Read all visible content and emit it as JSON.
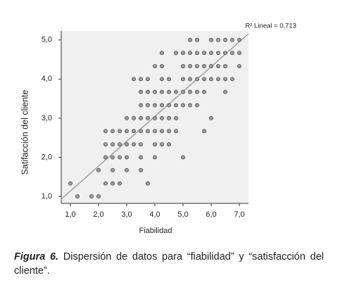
{
  "chart_data": {
    "type": "scatter",
    "x_label": "Fiabilidad",
    "y_label": "Satifacción del cliente",
    "annotation": "R² Lineal = 0,713",
    "x": [
      5.25,
      5.5,
      6,
      6.25,
      6.5,
      6.75,
      7,
      4.25,
      4.75,
      5,
      5.25,
      5.5,
      5.75,
      6,
      6.25,
      6.5,
      6.75,
      7,
      4,
      4.25,
      5,
      5.25,
      5.5,
      5.75,
      6,
      6.25,
      6.5,
      7,
      3.25,
      3.5,
      3.75,
      4.25,
      4.5,
      5,
      5.25,
      5.5,
      5.75,
      6,
      6.25,
      6.5,
      6.75,
      3.5,
      3.75,
      4,
      4.25,
      4.5,
      4.75,
      5,
      5.25,
      5.5,
      5.75,
      6.5,
      3.5,
      3.75,
      4,
      4.25,
      4.5,
      4.75,
      5,
      5.25,
      5.5,
      3,
      3.25,
      3.5,
      3.75,
      4,
      4.25,
      4.5,
      4.75,
      6,
      2.25,
      2.5,
      2.75,
      3,
      3.25,
      3.5,
      3.75,
      4,
      4.25,
      4.5,
      4.75,
      5.75,
      2.25,
      2.5,
      2.75,
      3,
      3.25,
      3.5,
      4,
      4.25,
      4.5,
      2.25,
      2.5,
      2.75,
      3,
      3.5,
      4,
      5,
      2,
      2.5,
      3,
      3.5,
      1,
      2.25,
      2.5,
      2.75,
      3.75,
      1.25,
      1.75,
      2
    ],
    "values": [
      5,
      5,
      5,
      5,
      5,
      5,
      5,
      4.67,
      4.67,
      4.67,
      4.67,
      4.67,
      4.67,
      4.67,
      4.67,
      4.67,
      4.67,
      4.67,
      4.33,
      4.33,
      4.33,
      4.33,
      4.33,
      4.33,
      4.33,
      4.33,
      4.33,
      4.33,
      4,
      4,
      4,
      4,
      4,
      4,
      4,
      4,
      4,
      4,
      4,
      4,
      4,
      3.67,
      3.67,
      3.67,
      3.67,
      3.67,
      3.67,
      3.67,
      3.67,
      3.67,
      3.67,
      3.67,
      3.33,
      3.33,
      3.33,
      3.33,
      3.33,
      3.33,
      3.33,
      3.33,
      3.33,
      3,
      3,
      3,
      3,
      3,
      3,
      3,
      3,
      3,
      2.67,
      2.67,
      2.67,
      2.67,
      2.67,
      2.67,
      2.67,
      2.67,
      2.67,
      2.67,
      2.67,
      2.67,
      2.33,
      2.33,
      2.33,
      2.33,
      2.33,
      2.33,
      2.33,
      2.33,
      2.33,
      2,
      2,
      2,
      2,
      2,
      2,
      2,
      1.67,
      1.67,
      1.67,
      1.67,
      1.33,
      1.33,
      1.33,
      1.33,
      1.33,
      1,
      1,
      1
    ],
    "fit_line": {
      "x": [
        0.675,
        7.325
      ],
      "y": [
        0.93,
        5.16
      ]
    },
    "xlim": [
      0.675,
      7.325
    ],
    "ylim": [
      0.82,
      5.23
    ],
    "xticks": [
      {
        "value": 1,
        "label": "1,0"
      },
      {
        "value": 2,
        "label": "2,0"
      },
      {
        "value": 3,
        "label": "3,0"
      },
      {
        "value": 4,
        "label": "4,0"
      },
      {
        "value": 5,
        "label": "5,0"
      },
      {
        "value": 6,
        "label": "6,0"
      },
      {
        "value": 7,
        "label": "7,0"
      }
    ],
    "yticks": [
      {
        "value": 1,
        "label": "1,0"
      },
      {
        "value": 2,
        "label": "2,0"
      },
      {
        "value": 3,
        "label": "3,0"
      },
      {
        "value": 4,
        "label": "4,0"
      },
      {
        "value": 5,
        "label": "5,0"
      }
    ],
    "color": "#9a9a9a"
  },
  "caption": {
    "label": "Figura 6.",
    "text": "Dispersión de datos para “fiabilidad” y “satisfacción del cliente”."
  }
}
